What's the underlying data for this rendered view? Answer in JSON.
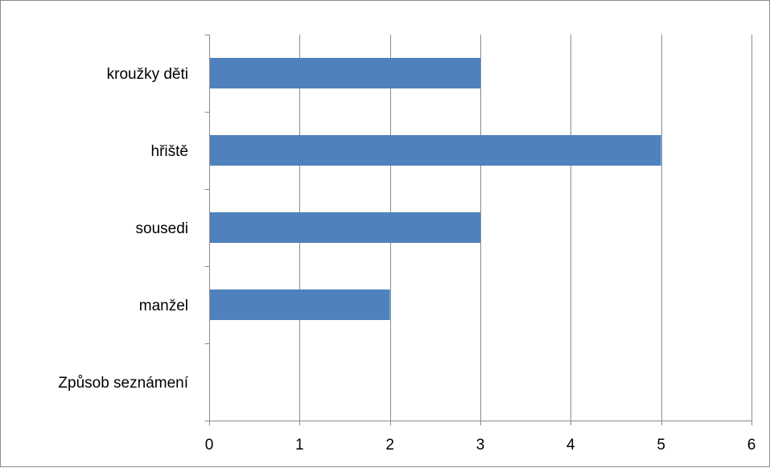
{
  "chart_data": {
    "type": "bar",
    "orientation": "horizontal",
    "categories": [
      "kroužky děti",
      "hřiště",
      "sousedi",
      "manžel",
      "Způsob seznámení"
    ],
    "values": [
      3,
      5,
      3,
      2,
      null
    ],
    "xlim": [
      0,
      6
    ],
    "x_ticks": [
      0,
      1,
      2,
      3,
      4,
      5,
      6
    ],
    "bar_color": "#4F81BD",
    "grid": "vertical",
    "title": "",
    "xlabel": "",
    "ylabel": ""
  }
}
